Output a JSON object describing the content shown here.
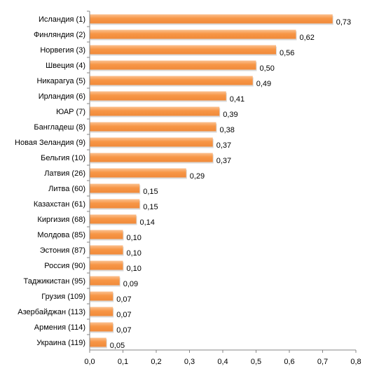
{
  "chart_data": {
    "type": "bar",
    "orientation": "horizontal",
    "title": "",
    "xlabel": "",
    "ylabel": "",
    "xlim": [
      0,
      0.8
    ],
    "xticks": [
      0,
      0.1,
      0.2,
      0.3,
      0.4,
      0.5,
      0.6,
      0.7,
      0.8
    ],
    "xtick_labels": [
      "0,0",
      "0,1",
      "0,2",
      "0,3",
      "0,4",
      "0,5",
      "0,6",
      "0,7",
      "0,8"
    ],
    "grid": false,
    "legend": "none",
    "bar_color": "#f79646",
    "bar_color_light": "#fbc08f",
    "categories": [
      "Исландия (1)",
      "Финляндия (2)",
      "Норвегия (3)",
      "Швеция (4)",
      "Никарагуа (5)",
      "Ирландия (6)",
      "ЮАР (7)",
      "Бангладеш (8)",
      "Новая Зеландия (9)",
      "Бельгия (10)",
      "Латвия (26)",
      "Литва (60)",
      "Казахстан (61)",
      "Киргизия (68)",
      "Молдова (85)",
      "Эстония (87)",
      "Россия (90)",
      "Таджикистан (95)",
      "Грузия (109)",
      "Азербайджан (113)",
      "Армения (114)",
      "Украина (119)"
    ],
    "values": [
      0.73,
      0.62,
      0.56,
      0.5,
      0.49,
      0.41,
      0.39,
      0.38,
      0.37,
      0.37,
      0.29,
      0.15,
      0.15,
      0.14,
      0.1,
      0.1,
      0.1,
      0.09,
      0.07,
      0.07,
      0.07,
      0.05
    ],
    "value_labels": [
      "0,73",
      "0,62",
      "0,56",
      "0,50",
      "0,49",
      "0,41",
      "0,39",
      "0,38",
      "0,37",
      "0,37",
      "0,29",
      "0,15",
      "0,15",
      "0,14",
      "0,10",
      "0,10",
      "0,10",
      "0,09",
      "0,07",
      "0,07",
      "0,07",
      "0,05"
    ]
  }
}
